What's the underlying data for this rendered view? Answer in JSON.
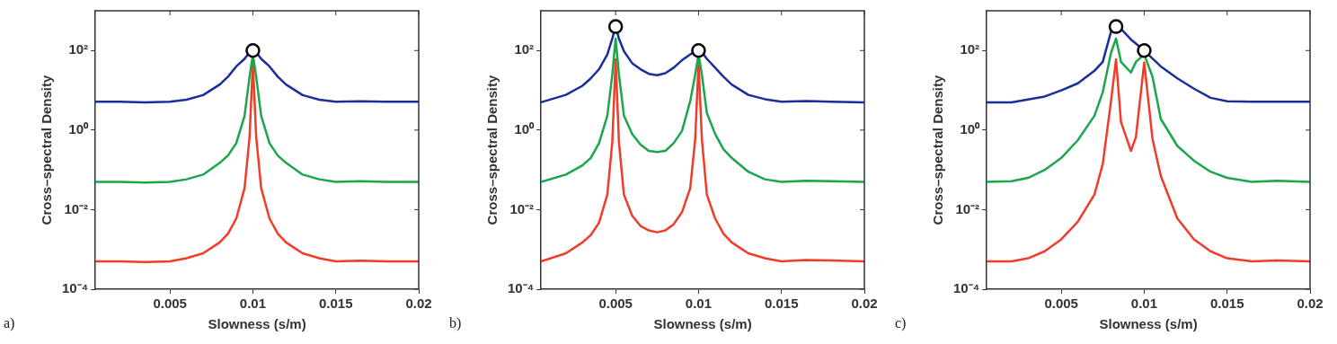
{
  "chart_data": [
    {
      "type": "line",
      "xlabel": "Slowness (s/m)",
      "ylabel": "Cross–spectral Density",
      "annotations": [
        "a)"
      ],
      "log": "y",
      "grid": false,
      "marker": "none",
      "line_style": "solid",
      "xlim": [
        0.0005,
        0.02
      ],
      "xticks": [
        0.005,
        0.01,
        0.015,
        0.02
      ],
      "ylim": [
        0.0001,
        1000
      ],
      "yticks": [
        {
          "value": 0.0001,
          "label": "10⁻⁴"
        },
        {
          "value": 0.01,
          "label": "10⁻²"
        },
        {
          "value": 1,
          "label": "10⁰"
        },
        {
          "value": 100,
          "label": "10²"
        }
      ],
      "series": [
        {
          "color": "#1a2e9a",
          "x": [
            0.0005,
            0.002,
            0.0035,
            0.005,
            0.006,
            0.007,
            0.008,
            0.0085,
            0.009,
            0.0095,
            0.0098,
            0.01,
            0.0102,
            0.0105,
            0.011,
            0.0115,
            0.012,
            0.013,
            0.014,
            0.015,
            0.0165,
            0.018,
            0.02
          ],
          "values": [
            5.2,
            5.2,
            5,
            5.2,
            5.8,
            7.6,
            14,
            22,
            40,
            62,
            90,
            100,
            90,
            62,
            40,
            22,
            14,
            7.6,
            5.8,
            5.2,
            5.3,
            5.2,
            5.2
          ]
        },
        {
          "color": "#1aa64a",
          "x": [
            0.0005,
            0.002,
            0.0035,
            0.005,
            0.006,
            0.007,
            0.008,
            0.0085,
            0.009,
            0.0095,
            0.0098,
            0.01,
            0.0102,
            0.0105,
            0.011,
            0.0115,
            0.012,
            0.013,
            0.014,
            0.015,
            0.0165,
            0.018,
            0.02
          ],
          "values": [
            0.05,
            0.05,
            0.048,
            0.05,
            0.058,
            0.076,
            0.15,
            0.23,
            0.47,
            2.3,
            22,
            80,
            22,
            2.3,
            0.47,
            0.23,
            0.15,
            0.076,
            0.058,
            0.05,
            0.052,
            0.05,
            0.05
          ]
        },
        {
          "color": "#f03c28",
          "x": [
            0.0005,
            0.002,
            0.0035,
            0.005,
            0.006,
            0.007,
            0.008,
            0.0085,
            0.009,
            0.0095,
            0.0098,
            0.01,
            0.0102,
            0.0105,
            0.011,
            0.0115,
            0.012,
            0.013,
            0.014,
            0.015,
            0.0165,
            0.018,
            0.02
          ],
          "values": [
            0.0005,
            0.0005,
            0.00048,
            0.0005,
            0.0006,
            0.0008,
            0.0015,
            0.0025,
            0.006,
            0.035,
            0.67,
            50,
            0.67,
            0.035,
            0.006,
            0.0025,
            0.0015,
            0.0008,
            0.0006,
            0.0005,
            0.00052,
            0.0005,
            0.0005
          ]
        },
        {
          "type": "scatter",
          "marker": "circle",
          "color": "#000000",
          "x": [
            0.01
          ],
          "values": [
            100
          ]
        }
      ]
    },
    {
      "type": "line",
      "xlabel": "Slowness (s/m)",
      "ylabel": "Cross–spectral Density",
      "annotations": [
        "b)"
      ],
      "log": "y",
      "grid": false,
      "marker": "none",
      "line_style": "solid",
      "xlim": [
        0.0005,
        0.02
      ],
      "xticks": [
        0.005,
        0.01,
        0.015,
        0.02
      ],
      "ylim": [
        0.0001,
        1000
      ],
      "yticks": [
        {
          "value": 0.0001,
          "label": "10⁻⁴"
        },
        {
          "value": 0.01,
          "label": "10⁻²"
        },
        {
          "value": 1,
          "label": "10⁰"
        },
        {
          "value": 100,
          "label": "10²"
        }
      ],
      "series": [
        {
          "color": "#1a2e9a",
          "x": [
            0.0005,
            0.002,
            0.003,
            0.0035,
            0.004,
            0.0045,
            0.0048,
            0.005,
            0.0052,
            0.0055,
            0.006,
            0.0065,
            0.007,
            0.0075,
            0.008,
            0.0085,
            0.009,
            0.0095,
            0.0098,
            0.01,
            0.0102,
            0.0105,
            0.011,
            0.0115,
            0.012,
            0.013,
            0.014,
            0.015,
            0.0165,
            0.018,
            0.02
          ],
          "values": [
            5,
            7.7,
            13,
            20,
            34,
            80,
            200,
            400,
            200,
            96,
            48,
            34,
            26,
            24,
            27,
            37,
            57,
            80,
            95,
            100,
            92,
            62,
            37,
            22,
            14,
            7.7,
            6,
            5.2,
            5.4,
            5.2,
            5
          ]
        },
        {
          "color": "#1aa64a",
          "x": [
            0.0005,
            0.002,
            0.003,
            0.0035,
            0.004,
            0.0045,
            0.0048,
            0.005,
            0.0052,
            0.0055,
            0.006,
            0.0065,
            0.007,
            0.0075,
            0.008,
            0.0085,
            0.009,
            0.0095,
            0.0098,
            0.01,
            0.0102,
            0.0105,
            0.011,
            0.0115,
            0.012,
            0.013,
            0.014,
            0.015,
            0.0165,
            0.018,
            0.02
          ],
          "values": [
            0.05,
            0.076,
            0.13,
            0.2,
            0.47,
            2.3,
            25,
            200,
            25,
            2.3,
            0.8,
            0.43,
            0.3,
            0.28,
            0.3,
            0.47,
            0.95,
            5.4,
            25,
            80,
            25,
            2.7,
            0.8,
            0.33,
            0.2,
            0.09,
            0.058,
            0.05,
            0.053,
            0.052,
            0.05
          ]
        },
        {
          "color": "#f03c28",
          "x": [
            0.0005,
            0.002,
            0.003,
            0.0035,
            0.004,
            0.0045,
            0.0048,
            0.005,
            0.0052,
            0.0055,
            0.006,
            0.0065,
            0.007,
            0.0075,
            0.008,
            0.0085,
            0.009,
            0.0095,
            0.0098,
            0.01,
            0.0102,
            0.0105,
            0.011,
            0.0115,
            0.012,
            0.013,
            0.014,
            0.015,
            0.0165,
            0.018,
            0.02
          ],
          "values": [
            0.0005,
            0.0008,
            0.0015,
            0.0023,
            0.0047,
            0.024,
            0.5,
            60,
            0.5,
            0.024,
            0.007,
            0.0039,
            0.003,
            0.0027,
            0.003,
            0.0043,
            0.0086,
            0.035,
            0.6,
            50,
            0.6,
            0.024,
            0.006,
            0.0025,
            0.0015,
            0.0008,
            0.0006,
            0.0005,
            0.00054,
            0.00053,
            0.0005
          ]
        },
        {
          "type": "scatter",
          "marker": "circle",
          "color": "#000000",
          "x": [
            0.005,
            0.01
          ],
          "values": [
            400,
            100
          ]
        }
      ]
    },
    {
      "type": "line",
      "xlabel": "Slowness (s/m)",
      "ylabel": "Cross–spectral Density",
      "annotations": [
        "c)"
      ],
      "log": "y",
      "grid": false,
      "marker": "none",
      "line_style": "solid",
      "xlim": [
        0.0005,
        0.02
      ],
      "xticks": [
        0.005,
        0.01,
        0.015,
        0.02
      ],
      "ylim": [
        0.0001,
        1000
      ],
      "yticks": [
        {
          "value": 0.0001,
          "label": "10⁻⁴"
        },
        {
          "value": 0.01,
          "label": "10⁻²"
        },
        {
          "value": 1,
          "label": "10⁰"
        },
        {
          "value": 100,
          "label": "10²"
        }
      ],
      "series": [
        {
          "color": "#1a2e9a",
          "x": [
            0.0005,
            0.002,
            0.003,
            0.004,
            0.005,
            0.006,
            0.007,
            0.0075,
            0.008,
            0.0083,
            0.0086,
            0.0092,
            0.0095,
            0.01,
            0.0105,
            0.011,
            0.012,
            0.013,
            0.014,
            0.015,
            0.0165,
            0.018,
            0.02
          ],
          "values": [
            5,
            5,
            5.9,
            7,
            10,
            15,
            31,
            52,
            300,
            400,
            350,
            190,
            150,
            100,
            63,
            40,
            20,
            11,
            6.5,
            5.3,
            5.2,
            5.2,
            5.2
          ]
        },
        {
          "color": "#1aa64a",
          "x": [
            0.0005,
            0.002,
            0.003,
            0.004,
            0.005,
            0.006,
            0.007,
            0.0075,
            0.008,
            0.0083,
            0.0086,
            0.0092,
            0.0095,
            0.01,
            0.0105,
            0.011,
            0.012,
            0.013,
            0.014,
            0.015,
            0.0165,
            0.018,
            0.02
          ],
          "values": [
            0.05,
            0.052,
            0.063,
            0.1,
            0.2,
            0.56,
            2.3,
            9,
            88,
            200,
            52,
            28,
            52,
            80,
            22,
            1.9,
            0.4,
            0.17,
            0.09,
            0.063,
            0.05,
            0.053,
            0.05
          ]
        },
        {
          "color": "#f03c28",
          "x": [
            0.0005,
            0.002,
            0.003,
            0.004,
            0.005,
            0.006,
            0.007,
            0.0075,
            0.008,
            0.0083,
            0.0086,
            0.0092,
            0.0095,
            0.01,
            0.0105,
            0.011,
            0.012,
            0.013,
            0.014,
            0.015,
            0.0165,
            0.018,
            0.02
          ],
          "values": [
            0.0005,
            0.0005,
            0.0006,
            0.0009,
            0.0018,
            0.005,
            0.024,
            0.14,
            5.4,
            60,
            1.6,
            0.3,
            0.67,
            50,
            0.6,
            0.07,
            0.006,
            0.0018,
            0.0009,
            0.0006,
            0.0005,
            0.00053,
            0.0005
          ]
        },
        {
          "type": "scatter",
          "marker": "circle",
          "color": "#000000",
          "x": [
            0.0083,
            0.01
          ],
          "values": [
            400,
            100
          ]
        }
      ]
    }
  ]
}
